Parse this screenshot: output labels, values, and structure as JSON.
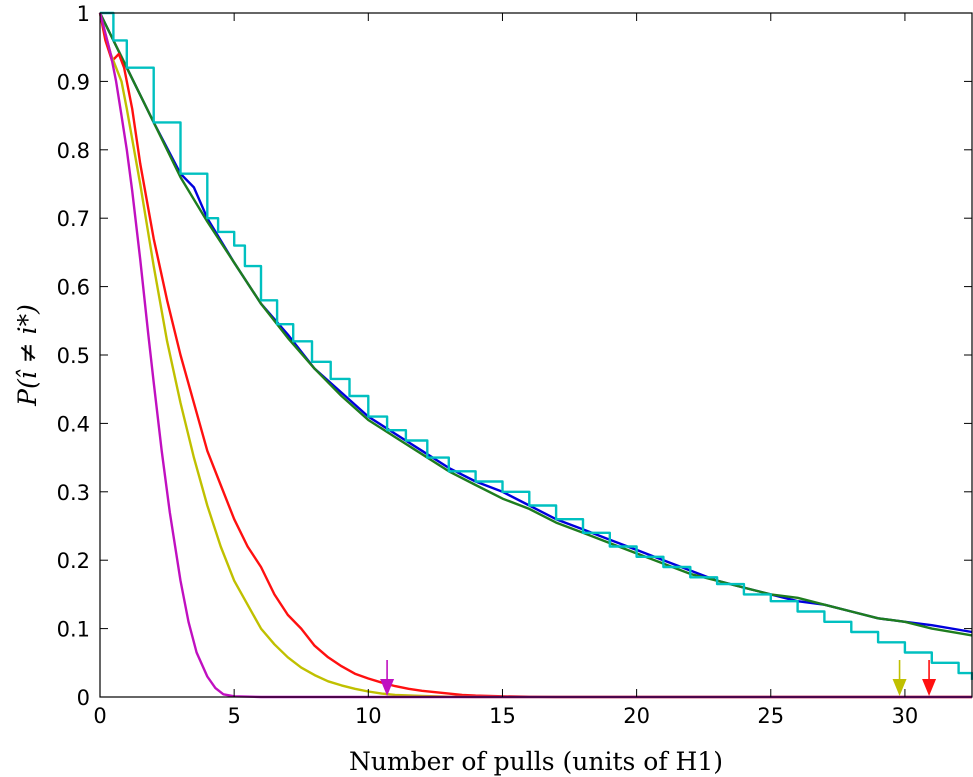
{
  "chart_data": {
    "type": "line",
    "xlabel": "Number of pulls (units of H1)",
    "ylabel": "P(î ≠ i*)",
    "xlim": [
      0,
      32.5
    ],
    "ylim": [
      0,
      1
    ],
    "xticks": [
      "0",
      "5",
      "10",
      "15",
      "20",
      "25",
      "30"
    ],
    "xtick_values": [
      0,
      5,
      10,
      15,
      20,
      25,
      30
    ],
    "yticks": [
      "0",
      "0.1",
      "0.2",
      "0.3",
      "0.4",
      "0.5",
      "0.6",
      "0.7",
      "0.8",
      "0.9",
      "1"
    ],
    "ytick_values": [
      0,
      0.1,
      0.2,
      0.3,
      0.4,
      0.5,
      0.6,
      0.7,
      0.8,
      0.9,
      1
    ],
    "grid": false,
    "series": [
      {
        "color": "#0000dd",
        "step": false,
        "x": [
          0,
          0.5,
          1,
          2,
          3,
          3.5,
          4,
          5,
          6,
          7,
          8,
          9,
          10,
          11,
          12,
          13,
          14,
          15,
          16,
          17,
          18,
          19,
          20,
          21,
          22,
          23,
          24,
          25,
          26,
          27,
          28,
          29,
          30,
          31,
          32.5
        ],
        "y": [
          1,
          0.96,
          0.92,
          0.84,
          0.765,
          0.745,
          0.7,
          0.635,
          0.575,
          0.53,
          0.48,
          0.445,
          0.41,
          0.385,
          0.36,
          0.335,
          0.315,
          0.3,
          0.28,
          0.26,
          0.245,
          0.23,
          0.215,
          0.2,
          0.185,
          0.17,
          0.16,
          0.15,
          0.14,
          0.135,
          0.125,
          0.115,
          0.11,
          0.105,
          0.095
        ]
      },
      {
        "color": "#1e7d1e",
        "step": false,
        "x": [
          0,
          0.5,
          1,
          2,
          3,
          4,
          5,
          6,
          7,
          8,
          9,
          10,
          11,
          12,
          13,
          14,
          15,
          16,
          17,
          18,
          19,
          20,
          21,
          22,
          23,
          24,
          25,
          26,
          27,
          28,
          29,
          30,
          31,
          32.5
        ],
        "y": [
          1,
          0.96,
          0.92,
          0.84,
          0.76,
          0.695,
          0.635,
          0.575,
          0.525,
          0.48,
          0.44,
          0.405,
          0.38,
          0.355,
          0.33,
          0.31,
          0.29,
          0.275,
          0.255,
          0.24,
          0.225,
          0.21,
          0.195,
          0.18,
          0.17,
          0.16,
          0.15,
          0.145,
          0.135,
          0.125,
          0.115,
          0.11,
          0.1,
          0.09
        ]
      },
      {
        "color": "#00c0c0",
        "step": true,
        "x": [
          0,
          0.5,
          1,
          2,
          3,
          4,
          4.4,
          5,
          5.4,
          6,
          6.6,
          7.2,
          7.9,
          8.6,
          9.3,
          10,
          10.7,
          11.4,
          12.2,
          13,
          14,
          15,
          16,
          17,
          18,
          19,
          20,
          21,
          22,
          23,
          24,
          25,
          26,
          27,
          28,
          29,
          30,
          31,
          32,
          32.5
        ],
        "y": [
          1,
          0.96,
          0.92,
          0.84,
          0.765,
          0.7,
          0.68,
          0.66,
          0.63,
          0.58,
          0.545,
          0.52,
          0.49,
          0.465,
          0.44,
          0.41,
          0.39,
          0.375,
          0.35,
          0.33,
          0.315,
          0.3,
          0.28,
          0.26,
          0.24,
          0.22,
          0.205,
          0.19,
          0.175,
          0.165,
          0.15,
          0.14,
          0.125,
          0.11,
          0.095,
          0.08,
          0.065,
          0.05,
          0.035,
          0.025
        ]
      },
      {
        "color": "#ff1010",
        "step": false,
        "x": [
          0,
          0.2,
          0.45,
          0.7,
          0.9,
          1.2,
          1.5,
          2,
          2.5,
          3,
          3.5,
          4,
          4.5,
          5,
          5.5,
          6,
          6.5,
          7,
          7.5,
          8,
          8.5,
          9,
          9.5,
          10,
          10.5,
          11,
          11.5,
          12,
          12.5,
          13,
          13.5,
          14,
          15,
          16,
          17,
          18,
          20,
          25,
          30,
          32.5
        ],
        "y": [
          1,
          0.96,
          0.93,
          0.94,
          0.92,
          0.86,
          0.78,
          0.67,
          0.58,
          0.5,
          0.43,
          0.36,
          0.31,
          0.26,
          0.22,
          0.19,
          0.15,
          0.12,
          0.1,
          0.075,
          0.058,
          0.045,
          0.034,
          0.027,
          0.021,
          0.016,
          0.012,
          0.009,
          0.007,
          0.005,
          0.003,
          0.002,
          0.001,
          0.0005,
          0,
          0,
          0,
          0,
          0,
          0
        ]
      },
      {
        "color": "#c0c000",
        "step": false,
        "x": [
          0,
          0.2,
          0.4,
          0.6,
          0.8,
          1,
          1.5,
          2,
          2.5,
          3,
          3.5,
          4,
          4.5,
          5,
          5.5,
          6,
          6.5,
          7,
          7.5,
          8,
          8.5,
          9,
          9.5,
          10,
          10.5,
          11,
          12,
          13,
          14,
          15,
          20,
          25,
          30,
          32.5
        ],
        "y": [
          1,
          0.97,
          0.94,
          0.92,
          0.9,
          0.86,
          0.75,
          0.63,
          0.52,
          0.43,
          0.35,
          0.28,
          0.22,
          0.17,
          0.135,
          0.1,
          0.077,
          0.058,
          0.043,
          0.032,
          0.023,
          0.017,
          0.012,
          0.008,
          0.005,
          0.003,
          0.0015,
          0.0005,
          0,
          0,
          0,
          0,
          0,
          0
        ]
      },
      {
        "color": "#c010c0",
        "step": false,
        "x": [
          0,
          0.2,
          0.4,
          0.6,
          0.8,
          1,
          1.2,
          1.5,
          1.8,
          2,
          2.3,
          2.6,
          3,
          3.3,
          3.6,
          4,
          4.3,
          4.6,
          5,
          6,
          10,
          20,
          32.5
        ],
        "y": [
          1,
          0.97,
          0.94,
          0.9,
          0.85,
          0.8,
          0.74,
          0.64,
          0.53,
          0.46,
          0.36,
          0.27,
          0.17,
          0.11,
          0.065,
          0.03,
          0.013,
          0.004,
          0.001,
          0,
          0,
          0,
          0
        ]
      }
    ],
    "annotations": [
      {
        "type": "arrow",
        "x": 10.7,
        "color": "#c010c0"
      },
      {
        "type": "arrow",
        "x": 29.8,
        "color": "#c0c000"
      },
      {
        "type": "arrow",
        "x": 30.9,
        "color": "#ff1010"
      }
    ]
  }
}
